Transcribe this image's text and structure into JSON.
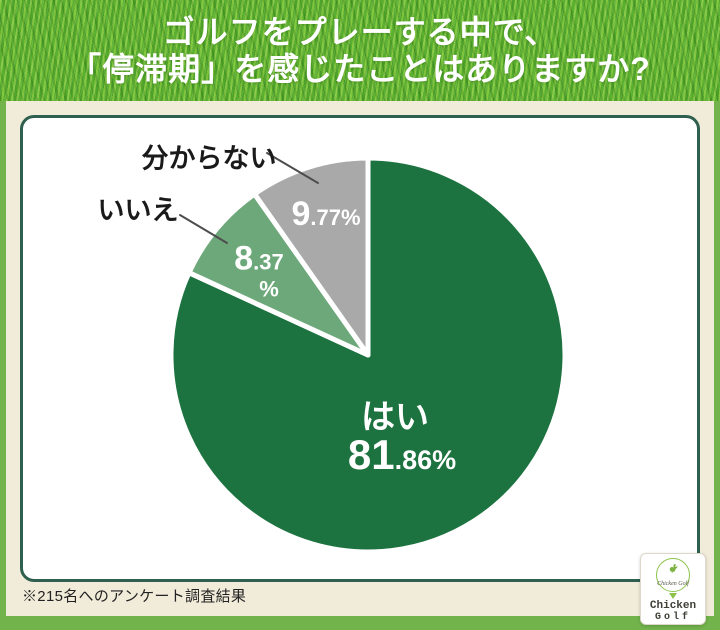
{
  "header": {
    "title_line1": "ゴルフをプレーする中で、",
    "title_line2": "「停滞期」を感じたことはありますか?"
  },
  "chart_data": {
    "type": "pie",
    "title": "ゴルフをプレーする中で、「停滞期」を感じたことはありますか?",
    "start_angle_deg": 0,
    "direction": "clockwise",
    "gap_color": "#ffffff",
    "slices": [
      {
        "label": "はい",
        "value": 81.86,
        "display": "81.86%",
        "color": "#1d7340",
        "label_position": "inside",
        "pct_parts": {
          "big": "81",
          "small": ".86%"
        }
      },
      {
        "label": "いいえ",
        "value": 8.37,
        "display": "8.37%",
        "color": "#6da87a",
        "label_position": "outside",
        "pct_parts": {
          "big": "8",
          "small": ".37",
          "line2": "%"
        }
      },
      {
        "label": "分からない",
        "value": 9.77,
        "display": "9.77%",
        "color": "#a9a9a9",
        "label_position": "outside",
        "pct_parts": {
          "big": "9",
          "small": ".77%"
        }
      }
    ]
  },
  "footnote": "※215名へのアンケート調査結果",
  "logo": {
    "name": "Chicken Golf",
    "script_text": "Chicken Golf",
    "word1": "Chicken",
    "word2": "Golf"
  },
  "colors": {
    "yes_green": "#1d7340",
    "no_green": "#6da87a",
    "unknown_gray": "#a9a9a9",
    "card_border": "#2f5f4f",
    "frame_green": "#72b34c",
    "background_cream": "#f1ebd9",
    "grass_base": "#5cb031",
    "logo_green": "#8bc34a"
  }
}
